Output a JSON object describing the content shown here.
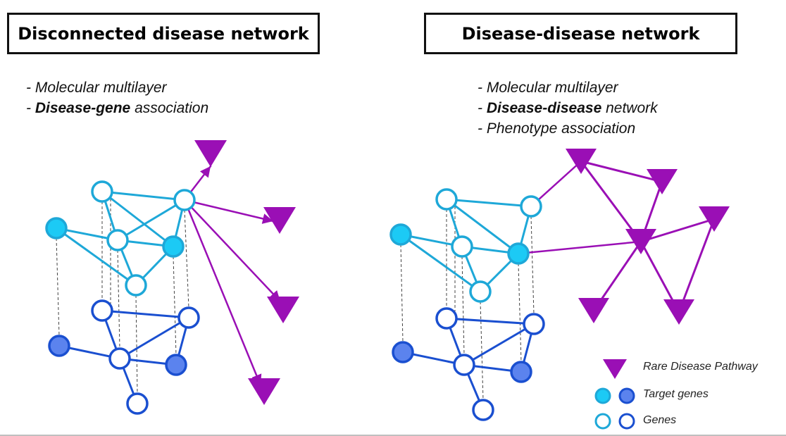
{
  "panels": {
    "left": {
      "title": "Disconnected disease network",
      "bullets": [
        {
          "dash": "- ",
          "bold": "",
          "text": "Molecular multilayer"
        },
        {
          "dash": "- ",
          "bold": "Disease-gene",
          "text": " association"
        }
      ]
    },
    "right": {
      "title": "Disease-disease network",
      "bullets": [
        {
          "dash": "- ",
          "bold": "",
          "text": "Molecular multilayer"
        },
        {
          "dash": "- ",
          "bold": "Disease-disease",
          "text": " network"
        },
        {
          "dash": "- ",
          "bold": "",
          "text": "Phenotype association"
        }
      ]
    }
  },
  "legend": {
    "rare_disease": "Rare Disease Pathway",
    "target_genes": "Target genes",
    "genes": "Genes"
  },
  "colors": {
    "upper_layer": "#1ea8d8",
    "upper_fill": "#1ccaf5",
    "lower_layer": "#1a4fd0",
    "lower_fill": "#5b83ee",
    "disease": "#9a0fb5",
    "inter_layer": "#444444"
  }
}
